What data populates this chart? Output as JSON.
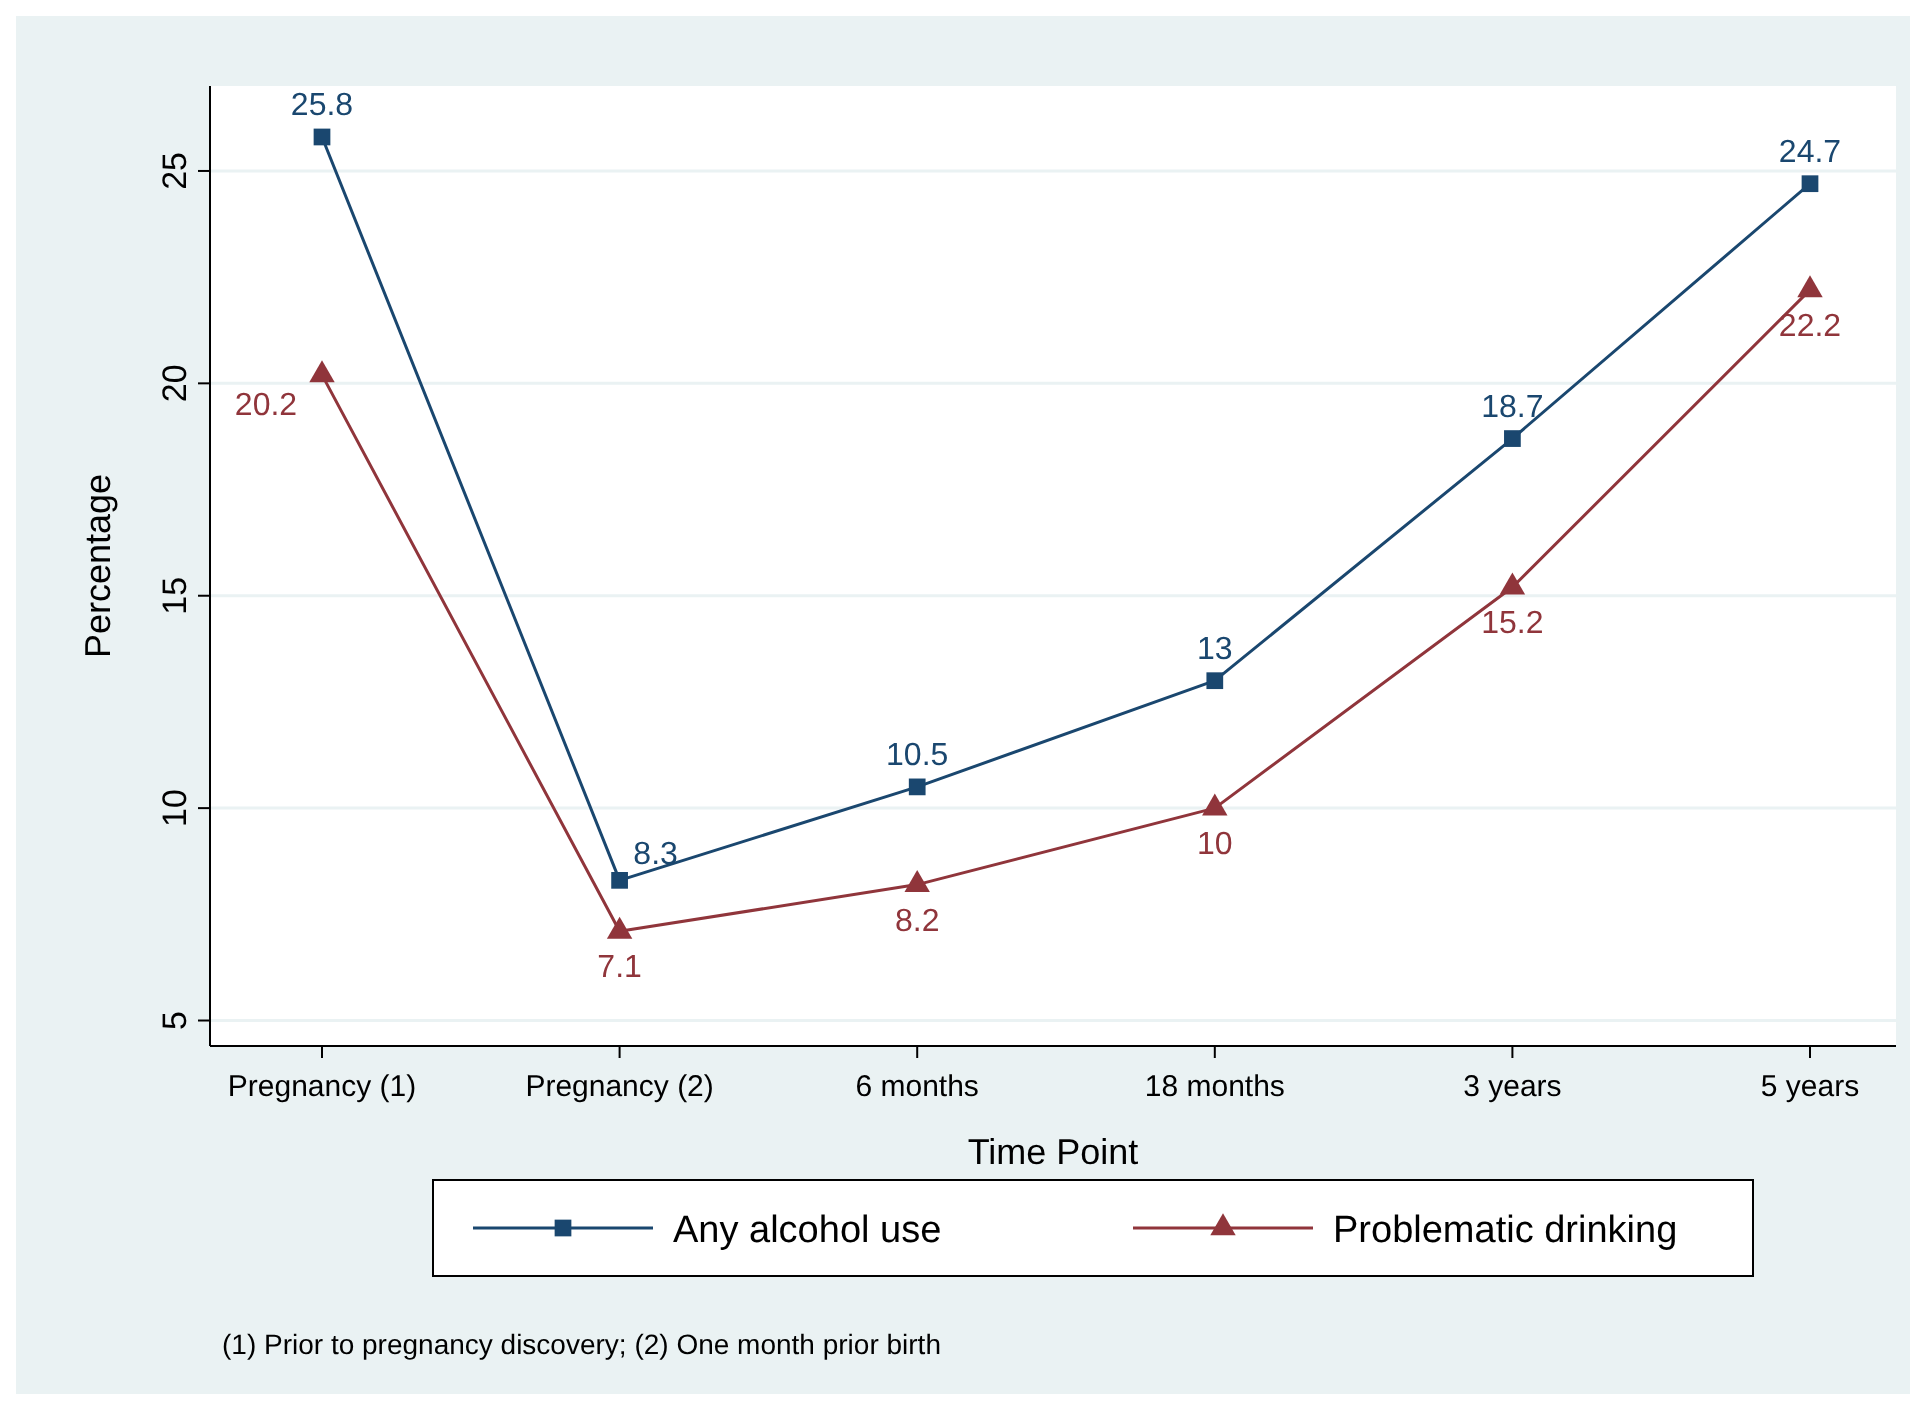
{
  "chart_data": {
    "type": "line",
    "xlabel": "Time Point",
    "ylabel": "Percentage",
    "categories": [
      "Pregnancy (1)",
      "Pregnancy (2)",
      "6 months",
      "18 months",
      "3 years",
      "5 years"
    ],
    "series": [
      {
        "name": "Any alcohol use",
        "color": "#1a476f",
        "marker": "square",
        "values": [
          25.8,
          8.3,
          10.5,
          13,
          18.7,
          24.7
        ]
      },
      {
        "name": "Problematic drinking",
        "color": "#90353b",
        "marker": "triangle",
        "values": [
          20.2,
          7.1,
          8.2,
          10,
          15.2,
          22.2
        ]
      }
    ],
    "ylim": [
      4.4,
      27
    ],
    "yticks": [
      5,
      10,
      15,
      20,
      25
    ],
    "grid": "y",
    "data_labels": true,
    "legend": "bottom",
    "annotations": [
      "(1) Prior to pregnancy discovery; (2) One month prior birth"
    ]
  }
}
